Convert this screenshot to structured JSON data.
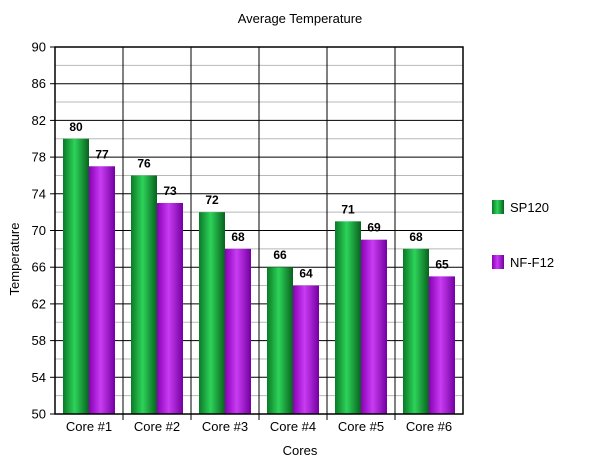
{
  "chart_data": {
    "type": "bar",
    "title": "Average Temperature",
    "xlabel": "Cores",
    "ylabel": "Temperature",
    "ylim": [
      50,
      90
    ],
    "yticks": [
      50,
      54,
      58,
      62,
      66,
      70,
      74,
      78,
      82,
      86,
      90
    ],
    "categories": [
      "Core #1",
      "Core #2",
      "Core #3",
      "Core #4",
      "Core #5",
      "Core #6"
    ],
    "series": [
      {
        "name": "SP120",
        "values": [
          80,
          76,
          72,
          66,
          71,
          68
        ],
        "color": "#119933"
      },
      {
        "name": "NF-F12",
        "values": [
          77,
          73,
          68,
          64,
          69,
          65
        ],
        "color": "#9900cc"
      }
    ],
    "grid": true,
    "legend_position": "right",
    "data_labels": true
  }
}
